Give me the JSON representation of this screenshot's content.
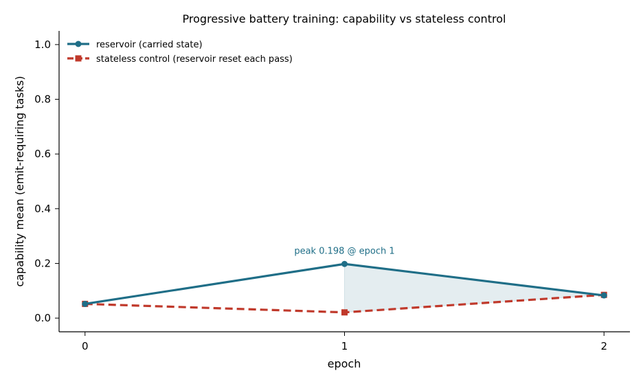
{
  "chart_data": {
    "type": "line",
    "title": "Progressive battery training: capability vs stateless control",
    "xlabel": "epoch",
    "ylabel": "capability mean (emit-requiring tasks)",
    "x": [
      0,
      1,
      2
    ],
    "x_ticks": [
      "0",
      "1",
      "2"
    ],
    "y_ticks": [
      "0.0",
      "0.2",
      "0.4",
      "0.6",
      "0.8",
      "1.0"
    ],
    "ylim": [
      -0.05,
      1.05
    ],
    "xlim": [
      -0.1,
      2.1
    ],
    "grid": false,
    "legend_position": "top-left",
    "series": [
      {
        "name": "reservoir (carried state)",
        "values": [
          0.052,
          0.198,
          0.083
        ],
        "color": "#1f6e87",
        "marker": "circle",
        "linestyle": "solid"
      },
      {
        "name": "stateless control (reservoir reset each pass)",
        "values": [
          0.052,
          0.021,
          0.085
        ],
        "color": "#c0392b",
        "marker": "square",
        "linestyle": "dashed"
      }
    ],
    "shaded_region": {
      "between_series": [
        0,
        1
      ],
      "from_x": 1,
      "to_x": 2,
      "color": "#1f6e87"
    },
    "annotation": {
      "text": "peak 0.198 @ epoch 1",
      "x": 1,
      "y": 0.198,
      "color": "#1f6e87"
    }
  }
}
